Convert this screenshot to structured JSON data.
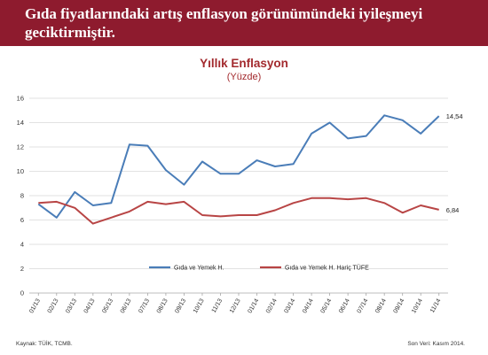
{
  "banner": {
    "line1": "Gıda fiyatlarındaki artış enflasyon görünümündeki iyileşmeyi",
    "line2": "geciktirmiştir."
  },
  "footer": {
    "source": "Kaynak: TÜİK, TCMB.",
    "last_data": "Son Veri: Kasım 2014."
  },
  "colors": {
    "banner": "#8e1b2e",
    "title": "#a32a2e",
    "series_blue": "#4a7db8",
    "series_red": "#b84545",
    "grid": "#d9d9d9"
  },
  "chart_data": {
    "type": "line",
    "title": "Yıllık Enflasyon",
    "subtitle": "(Yüzde)",
    "xlabel": "",
    "ylabel": "",
    "ylim": [
      0,
      16
    ],
    "yticks": [
      0,
      2,
      4,
      6,
      8,
      10,
      12,
      14,
      16
    ],
    "grid": "horizontal",
    "legend_position": "bottom-inside",
    "categories": [
      "01/13",
      "02/13",
      "03/13",
      "04/13",
      "05/13",
      "06/13",
      "07/13",
      "08/13",
      "09/13",
      "10/13",
      "11/13",
      "12/13",
      "01/14",
      "02/14",
      "03/14",
      "04/14",
      "05/14",
      "06/14",
      "07/14",
      "08/14",
      "09/14",
      "10/14",
      "11/14"
    ],
    "series": [
      {
        "name": "Gıda ve Yemek H.",
        "color": "#4a7db8",
        "values": [
          7.3,
          6.2,
          8.3,
          7.2,
          7.4,
          12.2,
          12.1,
          10.1,
          8.9,
          10.8,
          9.8,
          9.8,
          10.9,
          10.4,
          10.6,
          13.1,
          14.0,
          12.7,
          12.9,
          14.6,
          14.2,
          13.1,
          14.54
        ],
        "end_label": "14,54"
      },
      {
        "name": "Gıda ve Yemek H. Hariç TÜFE",
        "color": "#b84545",
        "values": [
          7.4,
          7.5,
          7.0,
          5.7,
          6.2,
          6.7,
          7.5,
          7.3,
          7.5,
          6.4,
          6.3,
          6.4,
          6.4,
          6.8,
          7.4,
          7.8,
          7.8,
          7.7,
          7.8,
          7.4,
          6.6,
          7.2,
          6.84
        ],
        "end_label": "6,84"
      }
    ]
  }
}
